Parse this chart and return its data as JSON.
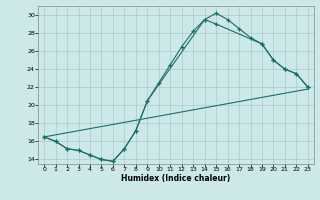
{
  "title": "",
  "xlabel": "Humidex (Indice chaleur)",
  "bg_color": "#cce8e8",
  "grid_color": "#aacccc",
  "line_color": "#1a6e6a",
  "xlim": [
    -0.5,
    23.5
  ],
  "ylim": [
    13.5,
    31.0
  ],
  "xticks": [
    0,
    1,
    2,
    3,
    4,
    5,
    6,
    7,
    8,
    9,
    10,
    11,
    12,
    13,
    14,
    15,
    16,
    17,
    18,
    19,
    20,
    21,
    22,
    23
  ],
  "yticks": [
    14,
    16,
    18,
    20,
    22,
    24,
    26,
    28,
    30
  ],
  "curve1_x": [
    0,
    1,
    2,
    3,
    4,
    5,
    6,
    7,
    8,
    9,
    10,
    11,
    12,
    13,
    14,
    15,
    16,
    17,
    18,
    19,
    20,
    21,
    22,
    23
  ],
  "curve1_y": [
    16.5,
    16.0,
    15.2,
    15.0,
    14.5,
    14.0,
    13.8,
    15.2,
    17.2,
    20.5,
    22.5,
    24.5,
    26.5,
    28.2,
    29.5,
    30.2,
    29.5,
    28.5,
    27.5,
    26.8,
    25.0,
    24.0,
    23.5,
    22.0
  ],
  "curve2_x": [
    0,
    1,
    2,
    3,
    4,
    5,
    6,
    7,
    8,
    9,
    14,
    15,
    19,
    20,
    21,
    22,
    23
  ],
  "curve2_y": [
    16.5,
    16.0,
    15.2,
    15.0,
    14.5,
    14.0,
    13.8,
    15.2,
    17.2,
    20.5,
    29.5,
    29.0,
    26.8,
    25.0,
    24.0,
    23.5,
    22.0
  ],
  "curve3_x": [
    0,
    23
  ],
  "curve3_y": [
    16.5,
    21.8
  ]
}
